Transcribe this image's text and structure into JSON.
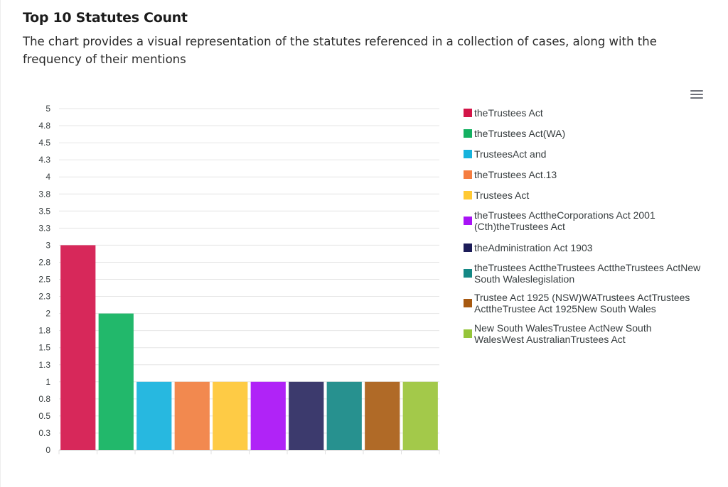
{
  "title": "Top 10 Statutes Count",
  "subtitle": "The chart provides a visual representation of the statutes referenced in a collection of cases, along with the frequency of their mentions",
  "menu": {
    "icon": "menu-icon"
  },
  "chart_data": {
    "type": "bar",
    "title": "",
    "xlabel": "",
    "ylabel": "",
    "ylim": [
      0,
      5
    ],
    "yticks": [
      "5",
      "4.8",
      "4.5",
      "4.3",
      "4",
      "3.8",
      "3.5",
      "3.3",
      "3",
      "2.8",
      "2.5",
      "2.3",
      "2",
      "1.8",
      "1.5",
      "1.3",
      "1",
      "0.8",
      "0.5",
      "0.3",
      "0"
    ],
    "grid": true,
    "legend_position": "right",
    "categories": [
      "theTrustees Act",
      "theTrustees Act(WA)",
      "TrusteesAct and",
      "theTrustees Act.13",
      "Trustees Act",
      "theTrustees ActtheCorporations Act 2001 (Cth)theTrustees Act",
      "theAdministration Act 1903",
      "theTrustees ActtheTrustees ActtheTrustees ActNew South Waleslegislation",
      "Trustee Act 1925 (NSW)WATrustees ActTrustees ActtheTrustee Act 1925New South Wales",
      "New South WalesTrustee ActNew South WalesWest AustralianTrustees Act"
    ],
    "values": [
      3,
      2,
      1,
      1,
      1,
      1,
      1,
      1,
      1,
      1
    ],
    "colors": [
      "#d7285a",
      "#22b86b",
      "#27b8e0",
      "#f2894f",
      "#fecb45",
      "#b023f7",
      "#3c3a6d",
      "#27918f",
      "#b06a27",
      "#a3c94a"
    ],
    "legend_colors": [
      "#d31548",
      "#14b061",
      "#17b3dc",
      "#f57d40",
      "#ffc933",
      "#a812f6",
      "#1c1c58",
      "#148885",
      "#a75910",
      "#95c53a"
    ]
  },
  "legend": [
    "theTrustees Act",
    "theTrustees Act(WA)",
    "TrusteesAct and",
    "theTrustees Act.13",
    "Trustees Act",
    "theTrustees ActtheCorporations Act 2001 (Cth)theTrustees Act",
    "theAdministration Act 1903",
    "theTrustees ActtheTrustees ActtheTrustees ActNew South Waleslegislation",
    "Trustee Act 1925 (NSW)WATrustees ActTrustees ActtheTrustee Act 1925New South Wales",
    "New South WalesTrustee ActNew South WalesWest AustralianTrustees Act"
  ]
}
